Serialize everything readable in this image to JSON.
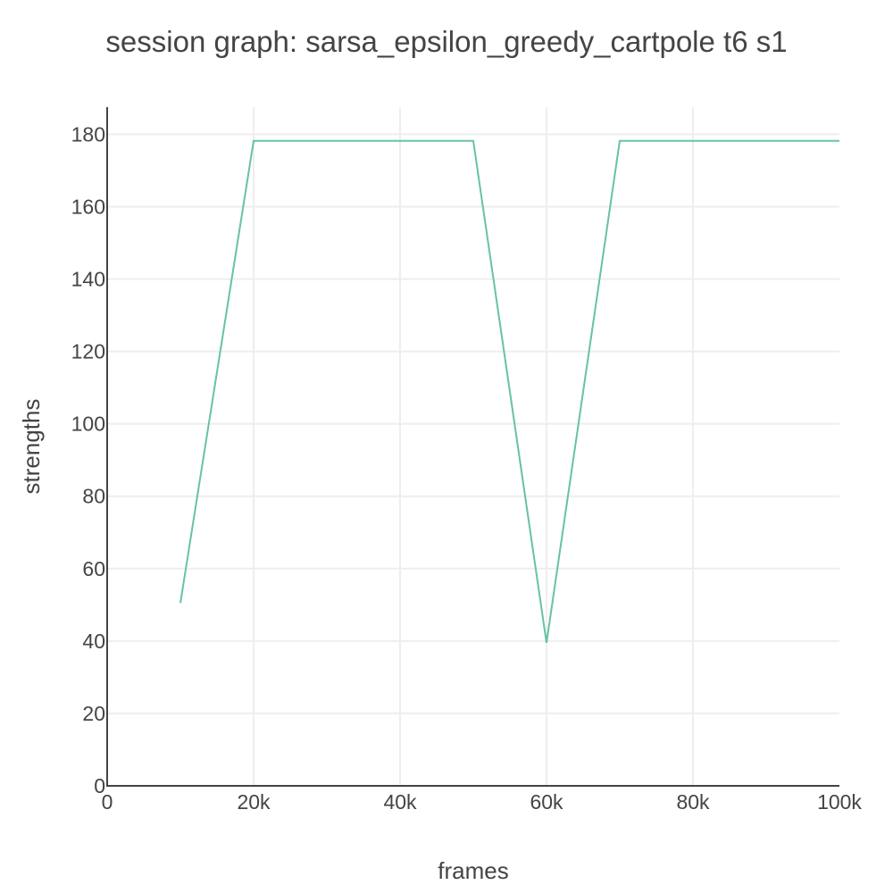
{
  "chart_data": {
    "type": "line",
    "title": "session graph: sarsa_epsilon_greedy_cartpole t6 s1",
    "xlabel": "frames",
    "ylabel": "strengths",
    "xlim": [
      0,
      100000
    ],
    "ylim": [
      0,
      187.5
    ],
    "x_ticks": [
      0,
      20000,
      40000,
      60000,
      80000,
      100000
    ],
    "x_tick_labels": [
      "0",
      "20k",
      "40k",
      "60k",
      "80k",
      "100k"
    ],
    "y_ticks": [
      0,
      20,
      40,
      60,
      80,
      100,
      120,
      140,
      160,
      180
    ],
    "y_tick_labels": [
      "0",
      "20",
      "40",
      "60",
      "80",
      "100",
      "120",
      "140",
      "160",
      "180"
    ],
    "grid": true,
    "series": [
      {
        "x": [
          10000,
          20000,
          30000,
          40000,
          50000,
          60000,
          70000,
          80000,
          90000,
          100000
        ],
        "y": [
          50.5,
          178.2,
          178.2,
          178.2,
          178.2,
          39.5,
          178.2,
          178.2,
          178.2,
          178.2
        ],
        "color": "#66c2a5"
      }
    ]
  }
}
